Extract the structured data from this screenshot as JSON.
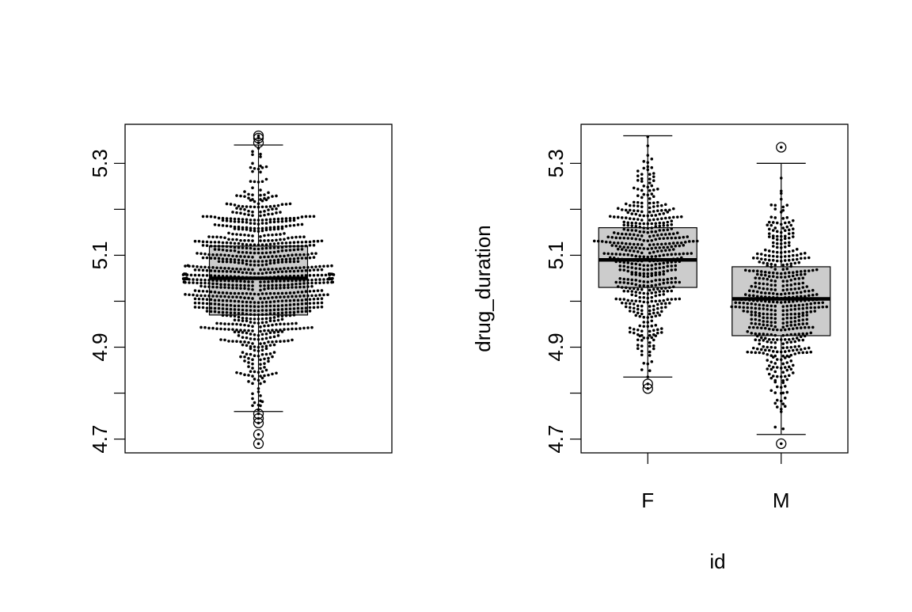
{
  "chart_data": [
    {
      "type": "boxplot",
      "title": "",
      "xlabel": "",
      "ylabel": "",
      "ylim": [
        4.67,
        5.385
      ],
      "yticks": [
        "4.7",
        "4.9",
        "5.1",
        "5.3"
      ],
      "ytick_values": [
        4.7,
        4.9,
        5.1,
        5.3
      ],
      "minor_yticks": [
        4.8,
        5.0,
        5.2
      ],
      "categories": [
        ""
      ],
      "boxes": [
        {
          "category": "",
          "whisker_low": 4.76,
          "q1": 4.97,
          "median": 5.05,
          "q3": 5.12,
          "whisker_high": 5.34,
          "outliers": [
            4.69,
            4.71,
            4.735,
            4.745,
            4.755,
            5.345,
            5.355,
            5.36
          ],
          "n_points": 1000,
          "mean": 5.05,
          "sd": 0.1
        }
      ]
    },
    {
      "type": "boxplot",
      "title": "",
      "xlabel": "id",
      "ylabel": "drug_duration",
      "ylim": [
        4.67,
        5.385
      ],
      "yticks": [
        "4.7",
        "4.9",
        "5.1",
        "5.3"
      ],
      "ytick_values": [
        4.7,
        4.9,
        5.1,
        5.3
      ],
      "minor_yticks": [
        4.8,
        5.0,
        5.2
      ],
      "categories": [
        "F",
        "M"
      ],
      "boxes": [
        {
          "category": "F",
          "whisker_low": 4.835,
          "q1": 5.03,
          "median": 5.09,
          "q3": 5.16,
          "whisker_high": 5.36,
          "outliers": [
            4.81,
            4.82
          ],
          "n_points": 500,
          "mean": 5.095,
          "sd": 0.095
        },
        {
          "category": "M",
          "whisker_low": 4.71,
          "q1": 4.925,
          "median": 5.005,
          "q3": 5.075,
          "whisker_high": 5.3,
          "outliers": [
            4.69,
            5.335
          ],
          "n_points": 500,
          "mean": 5.0,
          "sd": 0.1
        }
      ]
    }
  ]
}
